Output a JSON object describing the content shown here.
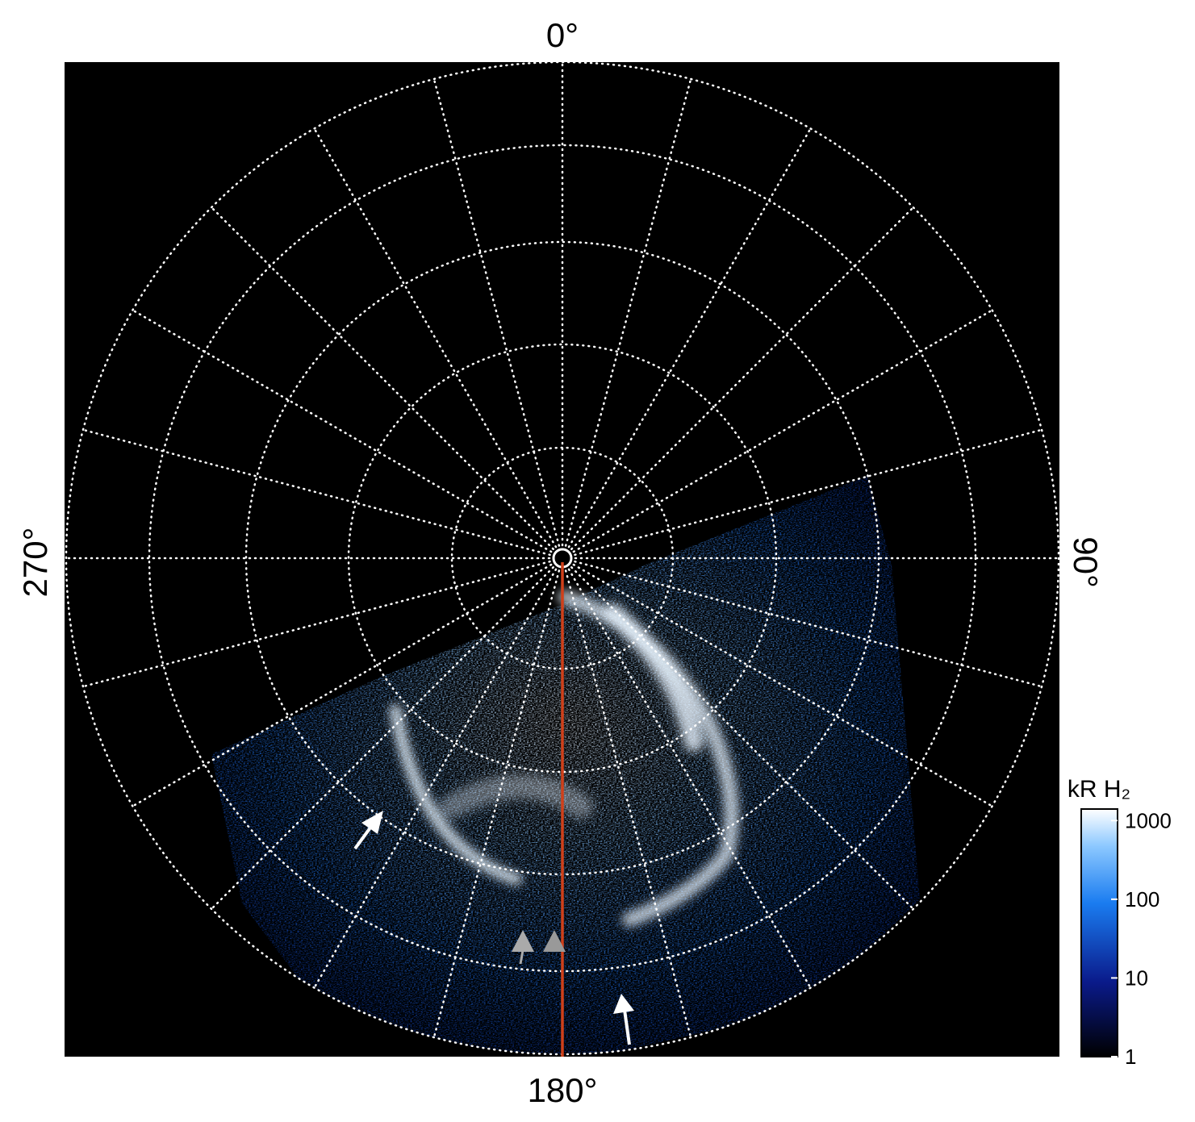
{
  "labels": {
    "top": "0°",
    "right": "90°",
    "bottom": "180°",
    "left": "270°"
  },
  "colorbar": {
    "label": "kR H₂",
    "lim": [
      1,
      1400
    ],
    "ticks": [
      1,
      10,
      100,
      1000
    ],
    "log": true
  }
}
